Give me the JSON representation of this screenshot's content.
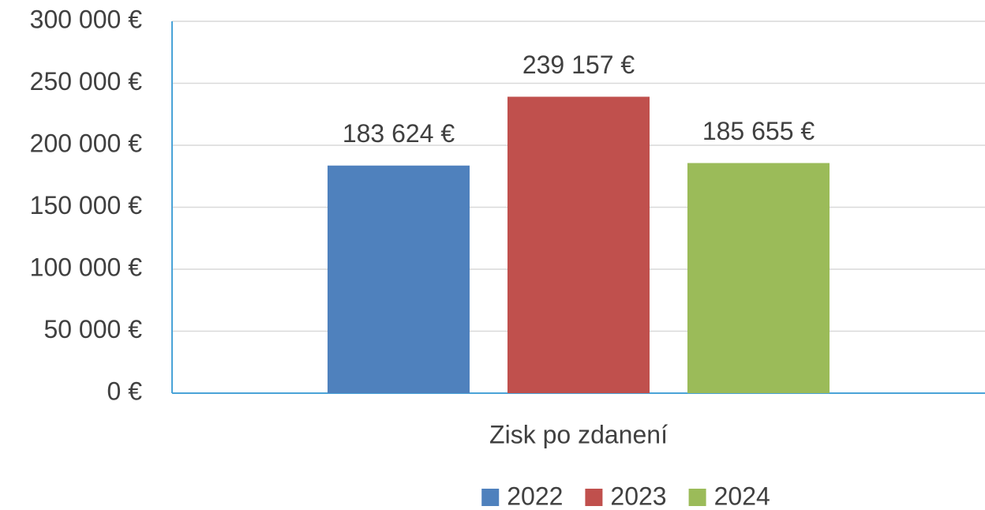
{
  "chart_data": {
    "type": "bar",
    "categories": [
      "Zisk po zdanení"
    ],
    "series": [
      {
        "name": "2022",
        "color": "#4f81bd",
        "values": [
          183624
        ],
        "value_labels": [
          "183 624 €"
        ]
      },
      {
        "name": "2023",
        "color": "#c0504d",
        "values": [
          239157
        ],
        "value_labels": [
          "239 157 €"
        ]
      },
      {
        "name": "2024",
        "color": "#9bbb59",
        "values": [
          185655
        ],
        "value_labels": [
          "185 655 €"
        ]
      }
    ],
    "ylim": [
      0,
      300000
    ],
    "yticks": [
      {
        "value": 0,
        "label": "0 €"
      },
      {
        "value": 50000,
        "label": "50 000 €"
      },
      {
        "value": 100000,
        "label": "100 000 €"
      },
      {
        "value": 150000,
        "label": "150 000 €"
      },
      {
        "value": 200000,
        "label": "200 000 €"
      },
      {
        "value": 250000,
        "label": "250 000 €"
      },
      {
        "value": 300000,
        "label": "300 000 €"
      }
    ],
    "grid": true,
    "legend": "bottom"
  }
}
